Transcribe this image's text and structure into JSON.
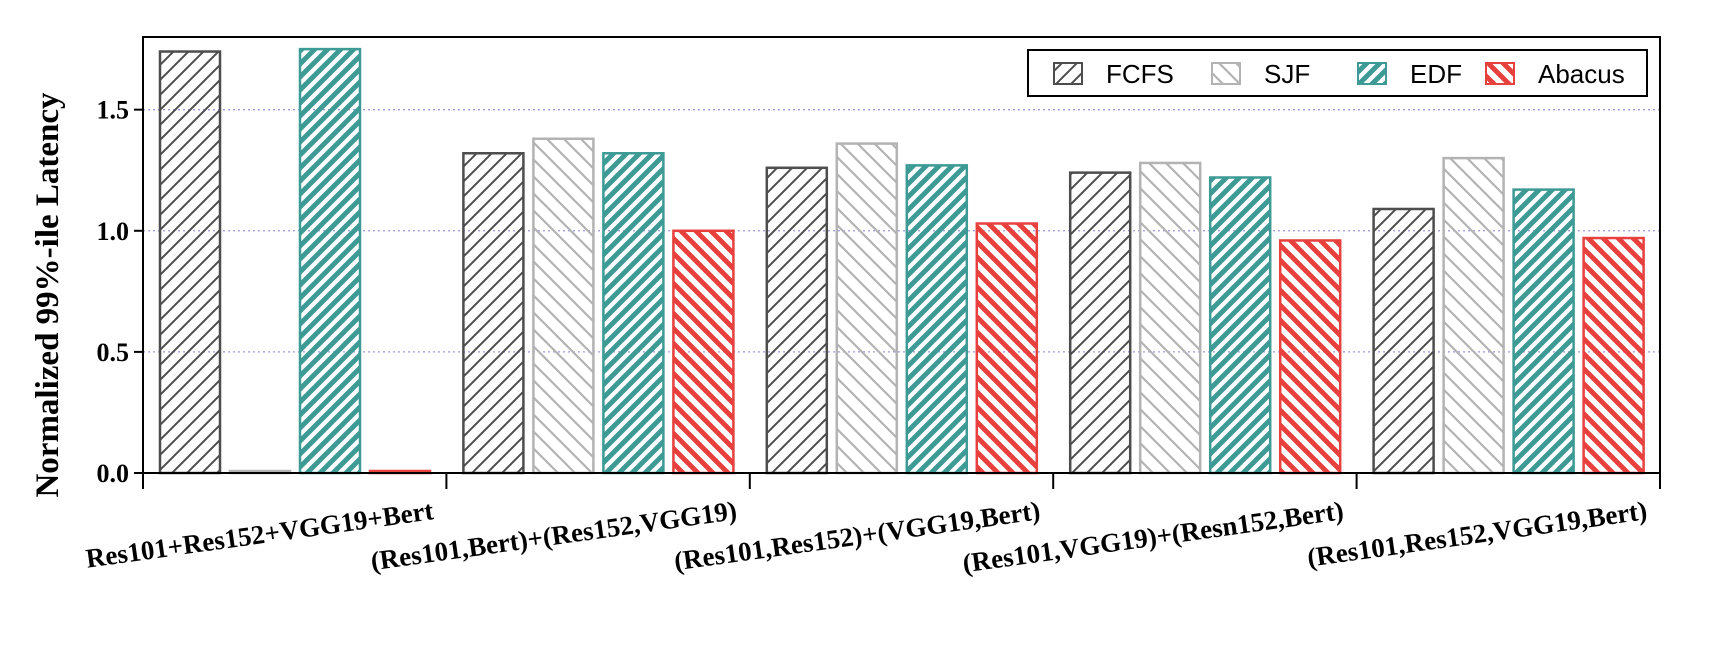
{
  "chart_data": {
    "type": "bar",
    "title": "",
    "xlabel": "",
    "ylabel": "Normalized 99%-ile Latency",
    "ylim": [
      0,
      1.8
    ],
    "yticks": [
      "0.0",
      "0.5",
      "1.0",
      "1.5"
    ],
    "ytick_values": [
      0,
      0.5,
      1.0,
      1.5
    ],
    "grid": "horizontal dotted",
    "legend_position": "top-right",
    "categories": [
      "Res101+Res152+VGG19+Bert",
      "(Res101,Bert)+(Res152,VGG19)",
      "(Res101,Res152)+(VGG19,Bert)",
      "(Res101,VGG19)+(Resn152,Bert)",
      "(Res101,Res152,VGG19,Bert)"
    ],
    "series": [
      {
        "name": "FCFS",
        "color": "#4d4d4d",
        "values": [
          1.74,
          1.32,
          1.26,
          1.24,
          1.09
        ]
      },
      {
        "name": "SJF",
        "color": "#b3b3b3",
        "values": [
          0,
          1.38,
          1.36,
          1.28,
          1.3
        ]
      },
      {
        "name": "EDF",
        "color": "#3d9a94",
        "values": [
          1.75,
          1.32,
          1.27,
          1.22,
          1.17
        ]
      },
      {
        "name": "Abacus",
        "color": "#e8403d",
        "values": [
          0,
          1.0,
          1.03,
          0.96,
          0.97
        ]
      }
    ]
  }
}
